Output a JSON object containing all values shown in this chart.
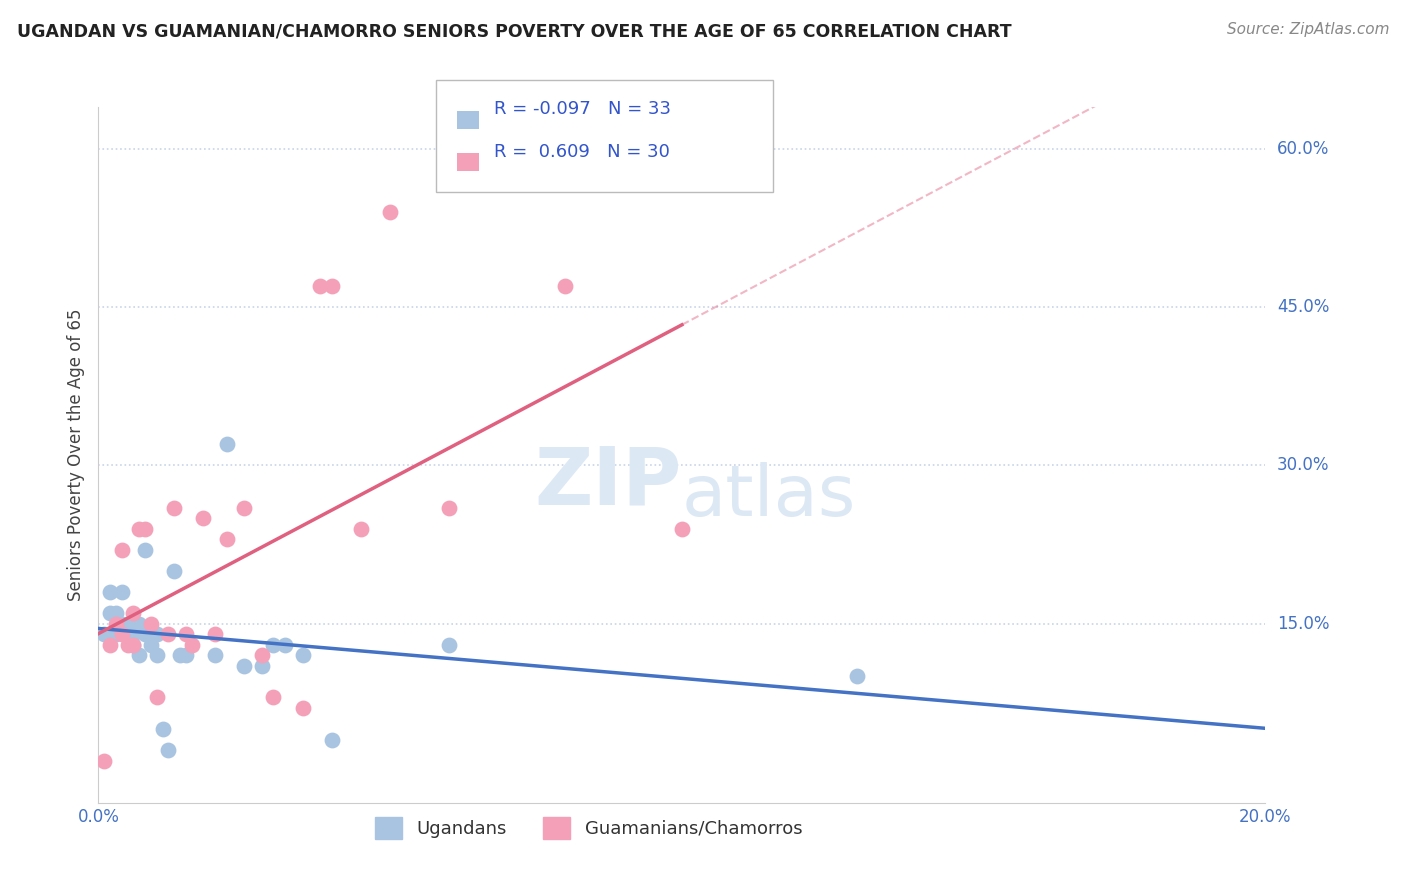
{
  "title": "UGANDAN VS GUAMANIAN/CHAMORRO SENIORS POVERTY OVER THE AGE OF 65 CORRELATION CHART",
  "source": "Source: ZipAtlas.com",
  "ylabel": "Seniors Poverty Over the Age of 65",
  "xlim": [
    0.0,
    0.2
  ],
  "ylim": [
    -0.02,
    0.64
  ],
  "ugandan_R": -0.097,
  "ugandan_N": 33,
  "guamanian_R": 0.609,
  "guamanian_N": 30,
  "ugandan_color": "#a8c4e0",
  "guamanian_color": "#f4a0b8",
  "ugandan_line_color": "#4472c4",
  "guamanian_line_color": "#e06080",
  "background_color": "#ffffff",
  "grid_color": "#c8d4e8",
  "watermark_color": "#dde8f5",
  "ugandan_x": [
    0.001,
    0.002,
    0.002,
    0.003,
    0.003,
    0.004,
    0.004,
    0.005,
    0.005,
    0.006,
    0.006,
    0.007,
    0.007,
    0.008,
    0.008,
    0.009,
    0.01,
    0.01,
    0.011,
    0.012,
    0.013,
    0.014,
    0.015,
    0.02,
    0.022,
    0.025,
    0.028,
    0.03,
    0.032,
    0.035,
    0.04,
    0.06,
    0.13
  ],
  "ugandan_y": [
    0.14,
    0.16,
    0.18,
    0.14,
    0.16,
    0.15,
    0.18,
    0.14,
    0.15,
    0.13,
    0.14,
    0.15,
    0.12,
    0.22,
    0.14,
    0.13,
    0.12,
    0.14,
    0.05,
    0.03,
    0.2,
    0.12,
    0.12,
    0.12,
    0.32,
    0.11,
    0.11,
    0.13,
    0.13,
    0.12,
    0.04,
    0.13,
    0.1
  ],
  "guamanian_x": [
    0.001,
    0.002,
    0.003,
    0.004,
    0.004,
    0.005,
    0.006,
    0.006,
    0.007,
    0.008,
    0.009,
    0.01,
    0.012,
    0.013,
    0.015,
    0.016,
    0.018,
    0.02,
    0.022,
    0.025,
    0.028,
    0.03,
    0.035,
    0.038,
    0.04,
    0.045,
    0.05,
    0.06,
    0.08,
    0.1
  ],
  "guamanian_y": [
    0.02,
    0.13,
    0.15,
    0.14,
    0.22,
    0.13,
    0.16,
    0.13,
    0.24,
    0.24,
    0.15,
    0.08,
    0.14,
    0.26,
    0.14,
    0.13,
    0.25,
    0.14,
    0.23,
    0.26,
    0.12,
    0.08,
    0.07,
    0.47,
    0.47,
    0.24,
    0.54,
    0.26,
    0.47,
    0.24
  ],
  "ytick_vals": [
    0.15,
    0.3,
    0.45,
    0.6
  ],
  "ytick_labels": [
    "15.0%",
    "30.0%",
    "45.0%",
    "60.0%"
  ],
  "xtick_vals": [
    0.0,
    0.2
  ],
  "xtick_labels": [
    "0.0%",
    "20.0%"
  ]
}
